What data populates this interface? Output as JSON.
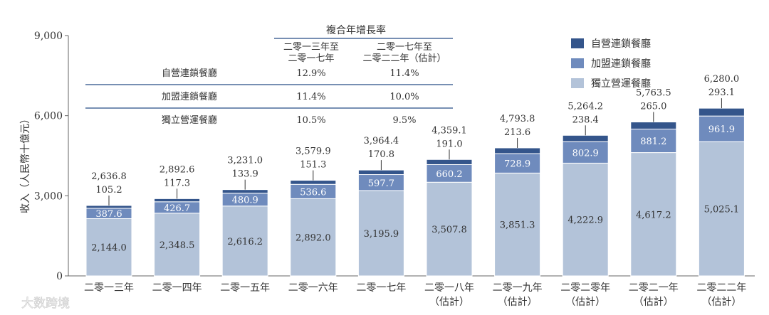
{
  "watermark": "大数跨境",
  "colors": {
    "self": "#34558b",
    "franchise": "#6f8bbd",
    "independent": "#b3c3d9",
    "rule": "#4a6a9a",
    "axis": "#666666"
  },
  "cagr_table": {
    "title": "複合年增長率",
    "col1": [
      "二零一三年至",
      "二零一七年"
    ],
    "col2": [
      "二零一七年至",
      "二零二二年（估計）"
    ],
    "rows": [
      {
        "name": "自營連鎖餐廳",
        "v1": "12.9%",
        "v2": "11.4%"
      },
      {
        "name": "加盟連鎖餐廳",
        "v1": "11.4%",
        "v2": "10.0%"
      },
      {
        "name": "獨立營運餐廳",
        "v1": "10.5%",
        "v2": "9.5%"
      }
    ]
  },
  "chart_data": {
    "type": "bar",
    "stacked": true,
    "ylabel": "收入（人民幣十億元）",
    "ylim": [
      0,
      9000
    ],
    "yticks": [
      0,
      3000,
      6000,
      9000
    ],
    "ytick_labels": [
      "0",
      "3,000",
      "6,000",
      "9,000"
    ],
    "categories": [
      [
        "二零一三年"
      ],
      [
        "二零一四年"
      ],
      [
        "二零一五年"
      ],
      [
        "二零一六年"
      ],
      [
        "二零一七年"
      ],
      [
        "二零一八年",
        "（估計）"
      ],
      [
        "二零一九年",
        "（估計）"
      ],
      [
        "二零二零年",
        "（估計）"
      ],
      [
        "二零二一年",
        "（估計）"
      ],
      [
        "二零二二年",
        "（估計）"
      ]
    ],
    "series": [
      {
        "name": "獨立營運餐廳",
        "key": "independent",
        "values": [
          2144.0,
          2348.5,
          2616.2,
          2892.0,
          3195.9,
          3507.8,
          3851.3,
          4222.9,
          4617.2,
          5025.1
        ],
        "labels": [
          "2,144.0",
          "2,348.5",
          "2,616.2",
          "2,892.0",
          "3,195.9",
          "3,507.8",
          "3,851.3",
          "4,222.9",
          "4,617.2",
          "5,025.1"
        ]
      },
      {
        "name": "加盟連鎖餐廳",
        "key": "franchise",
        "values": [
          387.6,
          426.7,
          480.9,
          536.6,
          597.7,
          660.2,
          728.9,
          802.9,
          881.2,
          961.9
        ],
        "labels": [
          "387.6",
          "426.7",
          "480.9",
          "536.6",
          "597.7",
          "660.2",
          "728.9",
          "802.9",
          "881.2",
          "961.9"
        ]
      },
      {
        "name": "自營連鎖餐廳",
        "key": "self",
        "values": [
          105.2,
          117.3,
          133.9,
          151.3,
          170.8,
          191.0,
          213.6,
          238.4,
          265.0,
          293.1
        ],
        "labels": [
          "105.2",
          "117.3",
          "133.9",
          "151.3",
          "170.8",
          "191.0",
          "213.6",
          "238.4",
          "265.0",
          "293.1"
        ]
      }
    ],
    "totals": [
      2636.8,
      2892.6,
      3231.0,
      3579.9,
      3964.4,
      4359.1,
      4793.8,
      5264.2,
      5763.5,
      6280.0
    ],
    "total_labels": [
      "2,636.8",
      "2,892.6",
      "3,231.0",
      "3,579.9",
      "3,964.4",
      "4,359.1",
      "4,793.8",
      "5,264.2",
      "5,763.5",
      "6,280.0"
    ],
    "legend": {
      "position": "top-right",
      "items": [
        "自營連鎖餐廳",
        "加盟連鎖餐廳",
        "獨立營運餐廳"
      ]
    },
    "grid": false
  }
}
